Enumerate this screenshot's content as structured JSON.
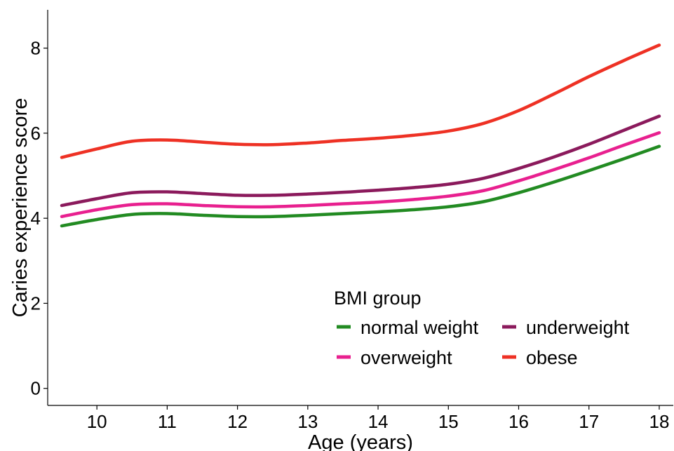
{
  "chart_data": {
    "type": "line",
    "xlabel": "Age (years)",
    "ylabel": "Caries experience score",
    "xlim": [
      9.3,
      18.2
    ],
    "ylim": [
      -0.4,
      8.9
    ],
    "x_ticks": [
      10,
      11,
      12,
      13,
      14,
      15,
      16,
      17,
      18
    ],
    "y_ticks": [
      0,
      2,
      4,
      6,
      8
    ],
    "grid": false,
    "legend": {
      "title": "BMI group",
      "placement": "bottom-right",
      "columns": 2
    },
    "x": [
      9.5,
      10,
      10.5,
      11,
      11.5,
      12,
      12.5,
      13,
      13.5,
      14,
      14.5,
      15,
      15.5,
      16,
      16.5,
      17,
      17.5,
      18
    ],
    "series": [
      {
        "name": "normal weight",
        "color": "#228B22",
        "values": [
          3.82,
          3.97,
          4.09,
          4.11,
          4.07,
          4.04,
          4.04,
          4.07,
          4.11,
          4.15,
          4.2,
          4.27,
          4.39,
          4.6,
          4.85,
          5.12,
          5.4,
          5.69
        ]
      },
      {
        "name": "underweight",
        "color": "#8B1A5C",
        "values": [
          4.3,
          4.46,
          4.6,
          4.62,
          4.58,
          4.54,
          4.54,
          4.57,
          4.61,
          4.66,
          4.72,
          4.8,
          4.94,
          5.17,
          5.44,
          5.74,
          6.07,
          6.4
        ]
      },
      {
        "name": "overweight",
        "color": "#E8208F",
        "values": [
          4.04,
          4.2,
          4.32,
          4.34,
          4.3,
          4.27,
          4.27,
          4.3,
          4.34,
          4.38,
          4.44,
          4.52,
          4.65,
          4.88,
          5.14,
          5.42,
          5.72,
          6.01
        ]
      },
      {
        "name": "obese",
        "color": "#EE3124",
        "values": [
          5.43,
          5.63,
          5.81,
          5.84,
          5.79,
          5.74,
          5.73,
          5.77,
          5.83,
          5.88,
          5.95,
          6.05,
          6.23,
          6.53,
          6.92,
          7.33,
          7.71,
          8.07
        ]
      }
    ]
  }
}
